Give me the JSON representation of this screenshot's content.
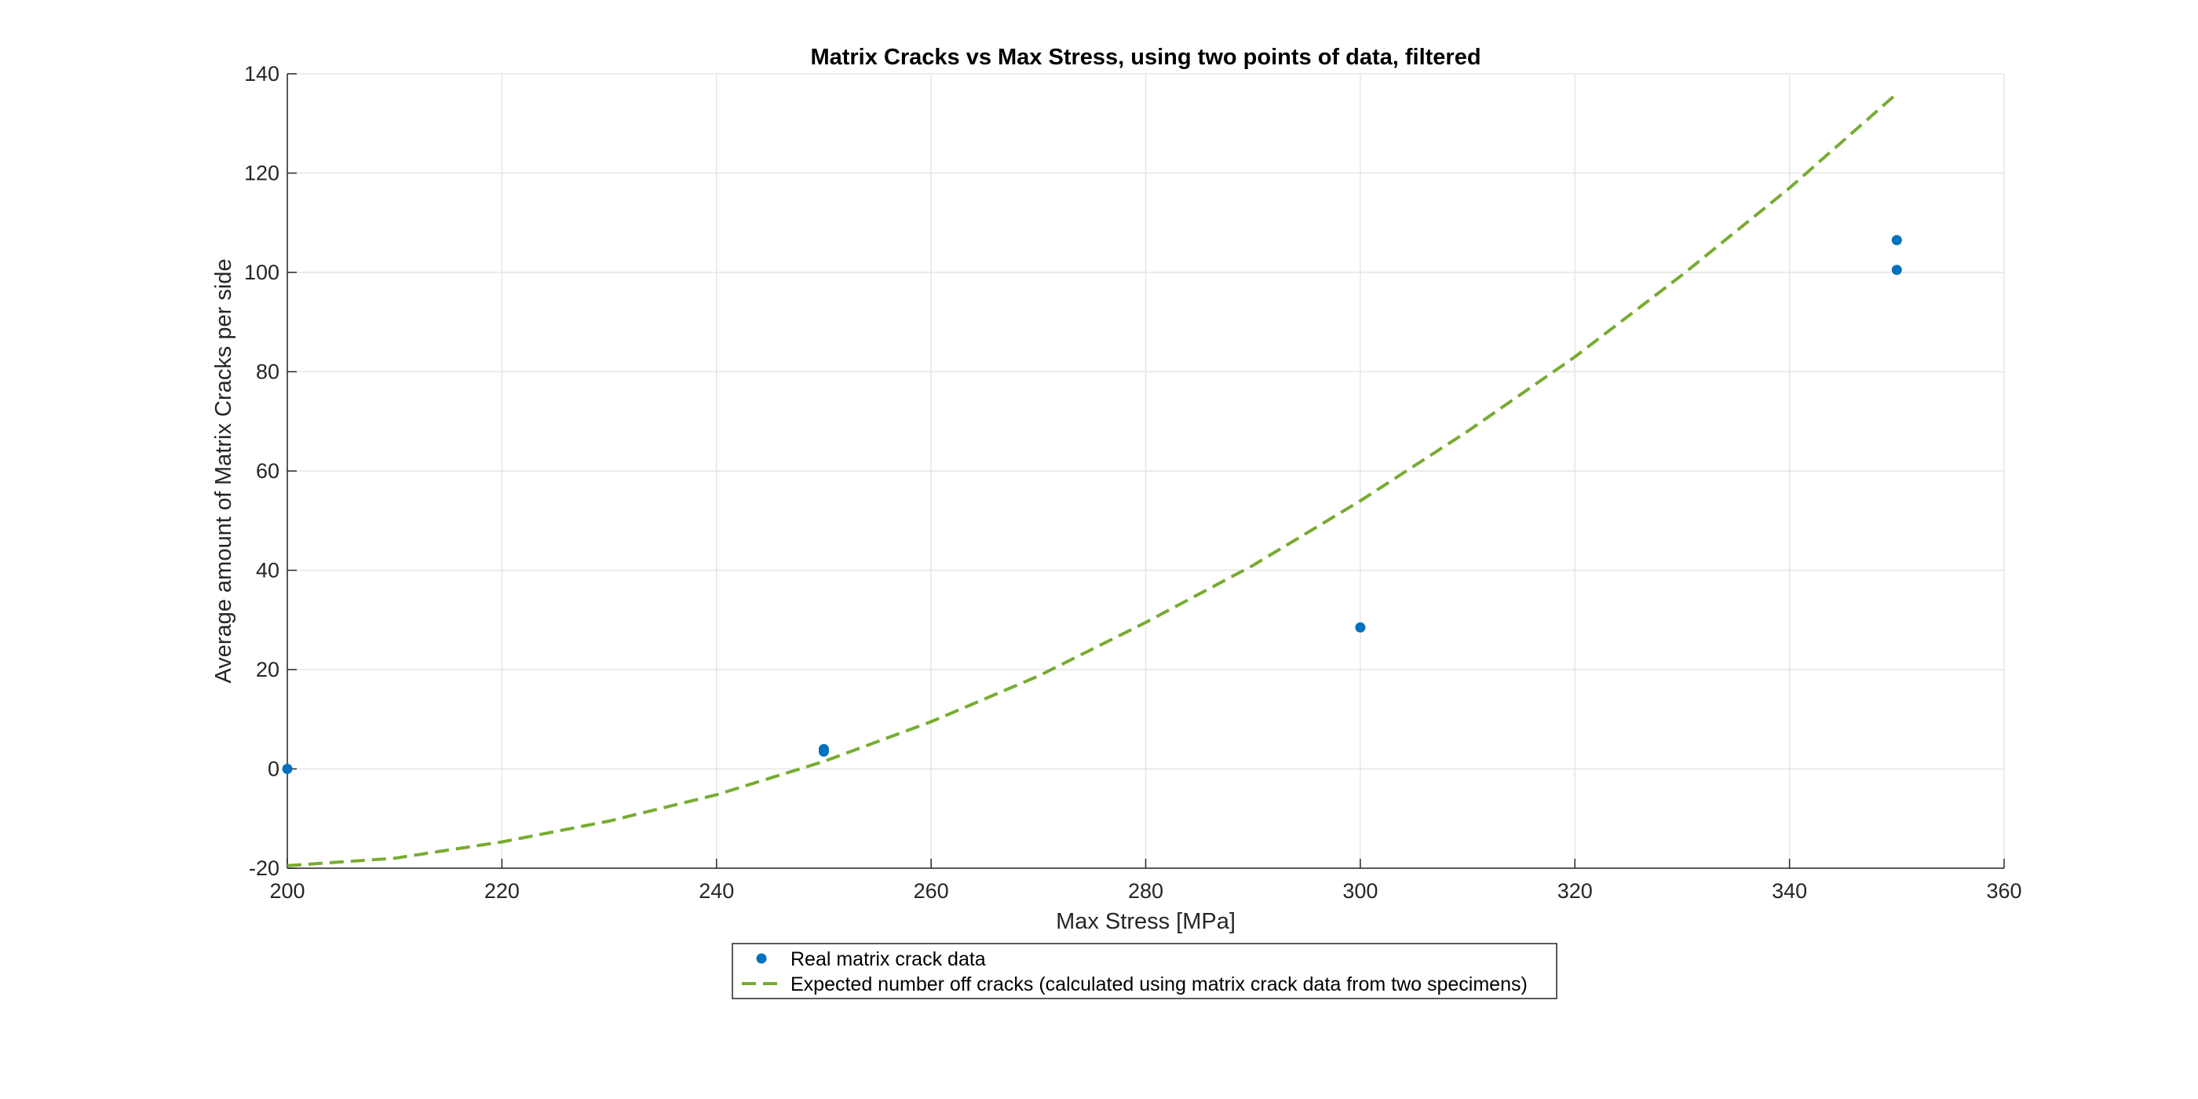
{
  "chart_data": {
    "type": "scatter",
    "title": "Matrix Cracks vs Max Stress, using two points of data, filtered",
    "xlabel": "Max Stress [MPa]",
    "ylabel": "Average amount of Matrix Cracks per side",
    "xlim": [
      200,
      360
    ],
    "ylim": [
      -20,
      140
    ],
    "xticks": [
      200,
      220,
      240,
      260,
      280,
      300,
      320,
      340,
      360
    ],
    "yticks": [
      -20,
      0,
      20,
      40,
      60,
      80,
      100,
      120,
      140
    ],
    "grid": true,
    "legend_position": "bottom-outside",
    "series": [
      {
        "name": "Real matrix crack data",
        "kind": "scatter",
        "color": "#0072BD",
        "points": [
          {
            "x": 200,
            "y": 0
          },
          {
            "x": 250,
            "y": 4
          },
          {
            "x": 250,
            "y": 3.5
          },
          {
            "x": 300,
            "y": 28.5
          },
          {
            "x": 350,
            "y": 106.5
          },
          {
            "x": 350,
            "y": 100.5
          }
        ]
      },
      {
        "name": "Expected number off cracks (calculated using matrix crack data from two specimens)",
        "kind": "line",
        "style": "dashed",
        "color": "#77AC30",
        "x": [
          200,
          210,
          220,
          230,
          240,
          250,
          260,
          270,
          280,
          290,
          300,
          310,
          320,
          330,
          340,
          350
        ],
        "y": [
          -19.5,
          -18.0,
          -14.7,
          -10.5,
          -5.2,
          1.5,
          9.5,
          18.7,
          29.5,
          41.0,
          54.0,
          68.0,
          83.0,
          99.5,
          117.0,
          136.0
        ]
      }
    ]
  }
}
